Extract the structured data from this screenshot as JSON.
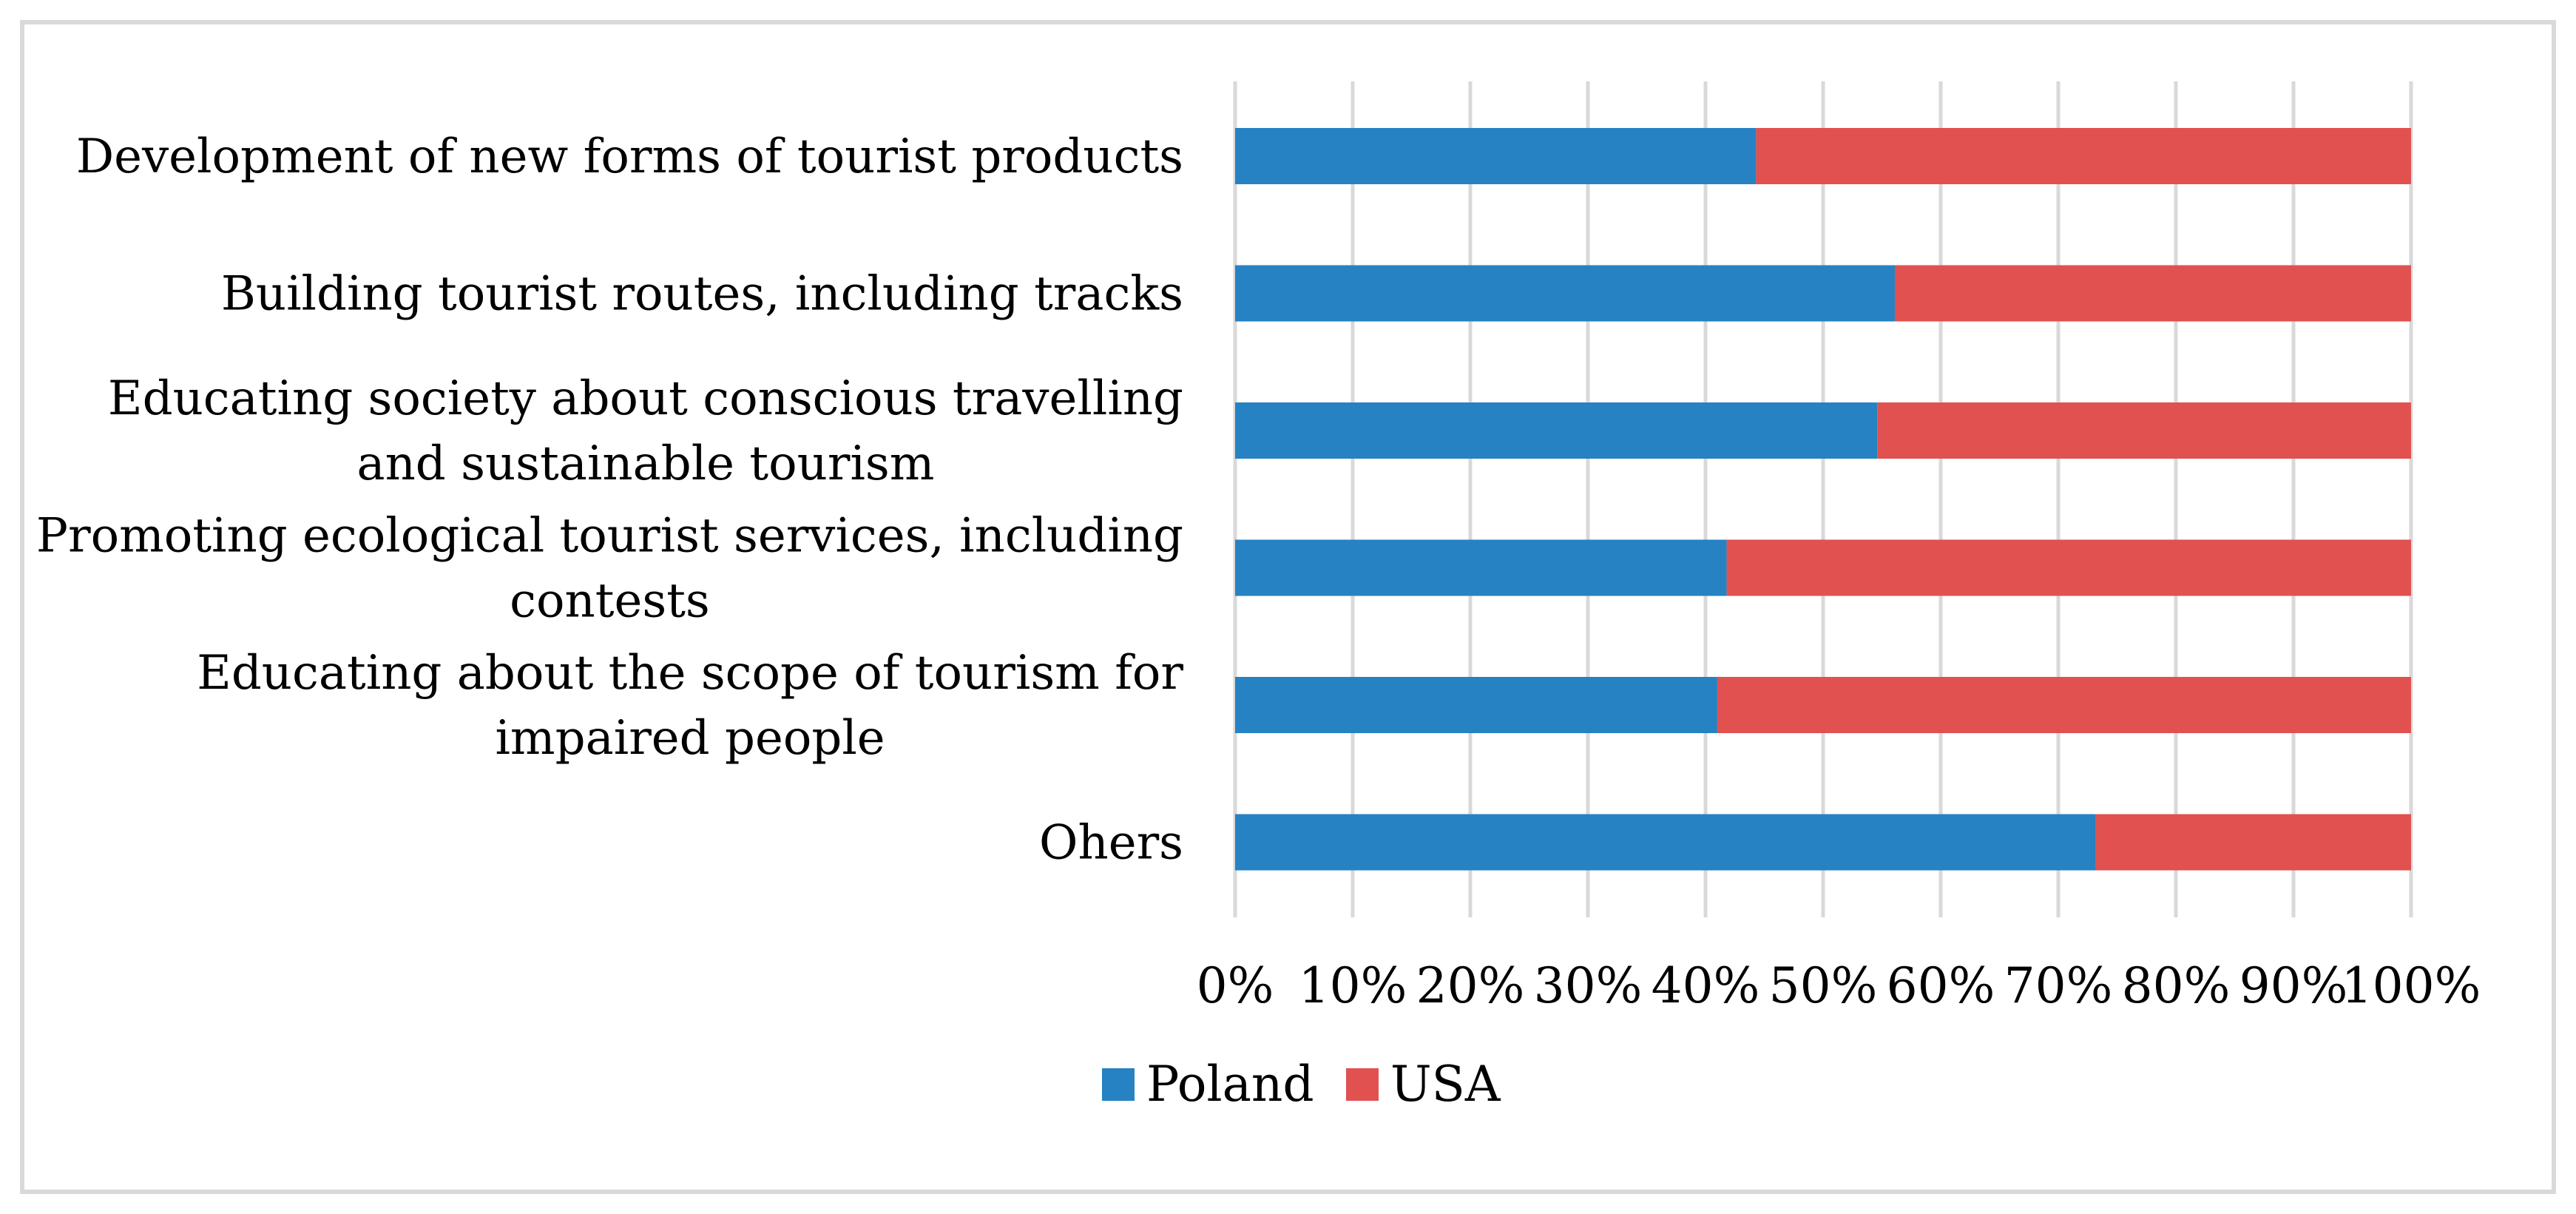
{
  "chart_data": {
    "type": "bar",
    "orientation": "horizontal",
    "stacked": "100%",
    "categories": [
      [
        "Development of new forms of tourist products"
      ],
      [
        "Building tourist routes, including tracks"
      ],
      [
        "Educating society about conscious travelling",
        "and sustainable tourism"
      ],
      [
        "Promoting ecological tourist services, including",
        "contests"
      ],
      [
        "Educating about the scope of tourism for",
        "impaired people"
      ],
      [
        "Ohers"
      ]
    ],
    "series": [
      {
        "name": "Poland",
        "color": "#2682C2",
        "values": [
          44.3,
          56.1,
          54.6,
          41.8,
          41.0,
          73.2
        ]
      },
      {
        "name": "USA",
        "color": "#E05150",
        "values": [
          55.7,
          43.9,
          45.4,
          58.2,
          59.0,
          26.8
        ]
      }
    ],
    "x_ticks": [
      "0%",
      "10%",
      "20%",
      "30%",
      "40%",
      "50%",
      "60%",
      "70%",
      "80%",
      "90%",
      "100%"
    ],
    "xlim": [
      0,
      100
    ],
    "grid": "vertical",
    "legend_position": "bottom",
    "title": "",
    "xlabel": "",
    "ylabel": ""
  }
}
